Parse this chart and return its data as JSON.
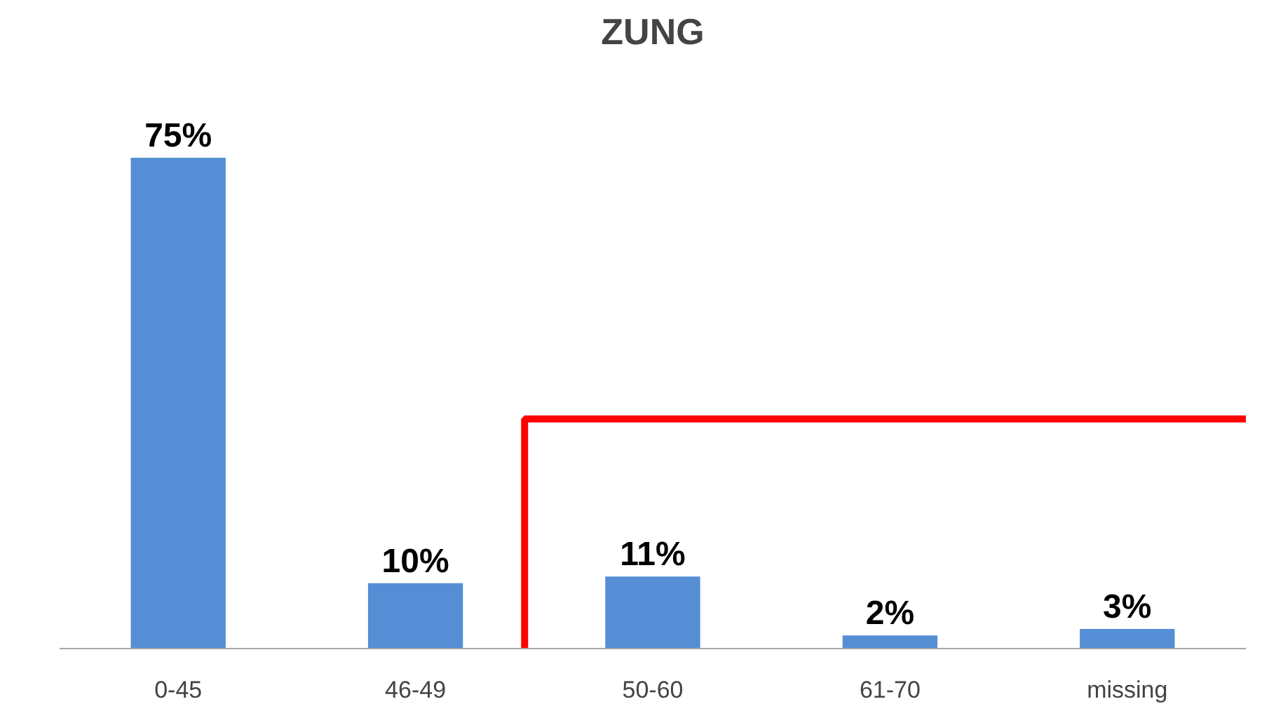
{
  "chart_data": {
    "type": "bar",
    "title": "ZUNG",
    "categories": [
      "0-45",
      "46-49",
      "50-60",
      "61-70",
      "missing"
    ],
    "values": [
      75,
      10,
      11,
      2,
      3
    ],
    "color": "#558ed5",
    "value_labels": [
      "75%",
      "10%",
      "11%",
      "2%",
      "3%"
    ],
    "grid": false
  }
}
